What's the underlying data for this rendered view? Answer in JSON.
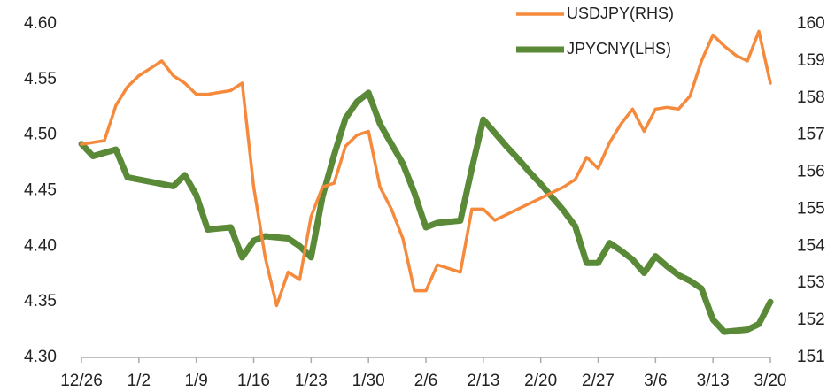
{
  "chart_data": {
    "type": "line",
    "categories": [
      "12/26",
      null,
      null,
      null,
      null,
      "1/2",
      null,
      null,
      null,
      null,
      "1/9",
      null,
      null,
      null,
      null,
      "1/16",
      null,
      null,
      null,
      null,
      "1/23",
      null,
      null,
      null,
      null,
      "1/30",
      null,
      null,
      null,
      null,
      "2/6",
      null,
      null,
      null,
      null,
      "2/13",
      null,
      null,
      null,
      null,
      "2/20",
      null,
      null,
      null,
      null,
      "2/27",
      null,
      null,
      null,
      null,
      "3/6",
      null,
      null,
      null,
      null,
      "3/13",
      null,
      null,
      null,
      null,
      "3/20"
    ],
    "series": [
      {
        "name": "USDJPY(RHS)",
        "color": "#f58a3c",
        "axis": "y2",
        "values": [
          156.75,
          156.8,
          156.85,
          157.8,
          158.3,
          158.6,
          158.8,
          159.0,
          158.6,
          158.4,
          158.1,
          158.1,
          158.15,
          158.2,
          158.4,
          155.6,
          153.7,
          152.4,
          153.3,
          153.1,
          154.8,
          155.6,
          155.7,
          156.7,
          157.0,
          157.1,
          155.6,
          155.0,
          154.2,
          152.8,
          152.8,
          153.5,
          153.4,
          153.3,
          155.0,
          155.0,
          154.7,
          154.85,
          155.0,
          155.15,
          155.3,
          155.45,
          155.6,
          155.8,
          156.4,
          156.1,
          156.8,
          157.3,
          157.7,
          157.1,
          157.7,
          157.75,
          157.7,
          158.05,
          159.0,
          159.7,
          159.4,
          159.15,
          159.0,
          159.8,
          158.4
        ]
      },
      {
        "name": "JPYCNY(LHS)",
        "color": "#5a8a37",
        "values": [
          4.492,
          4.481,
          4.484,
          4.487,
          4.462,
          4.46,
          4.458,
          4.456,
          4.454,
          4.464,
          4.446,
          4.415,
          4.416,
          4.417,
          4.39,
          4.405,
          4.409,
          4.408,
          4.407,
          4.4,
          4.39,
          4.445,
          4.482,
          4.515,
          4.53,
          4.538,
          4.51,
          4.492,
          4.474,
          4.448,
          4.417,
          4.421,
          4.422,
          4.423,
          4.47,
          4.514,
          4.502,
          4.49,
          4.479,
          4.467,
          4.456,
          4.444,
          4.432,
          4.418,
          4.385,
          4.385,
          4.403,
          4.396,
          4.388,
          4.376,
          4.391,
          4.382,
          4.374,
          4.369,
          4.362,
          4.334,
          4.323,
          4.324,
          4.325,
          4.33,
          4.35
        ]
      }
    ],
    "ylim": [
      4.3,
      4.6
    ],
    "yticks": [
      {
        "value": 4.3,
        "label": "4.30"
      },
      4.35,
      {
        "value": 4.4,
        "label": "4.40"
      },
      4.45,
      {
        "value": 4.5,
        "label": "4.50"
      },
      4.55,
      {
        "value": 4.6,
        "label": "4.60"
      }
    ],
    "y2lim": [
      151,
      160
    ],
    "y2ticks": [
      151,
      152,
      153,
      154,
      155,
      156,
      157,
      158,
      159,
      160
    ],
    "grid": false,
    "legend": "top-right"
  }
}
